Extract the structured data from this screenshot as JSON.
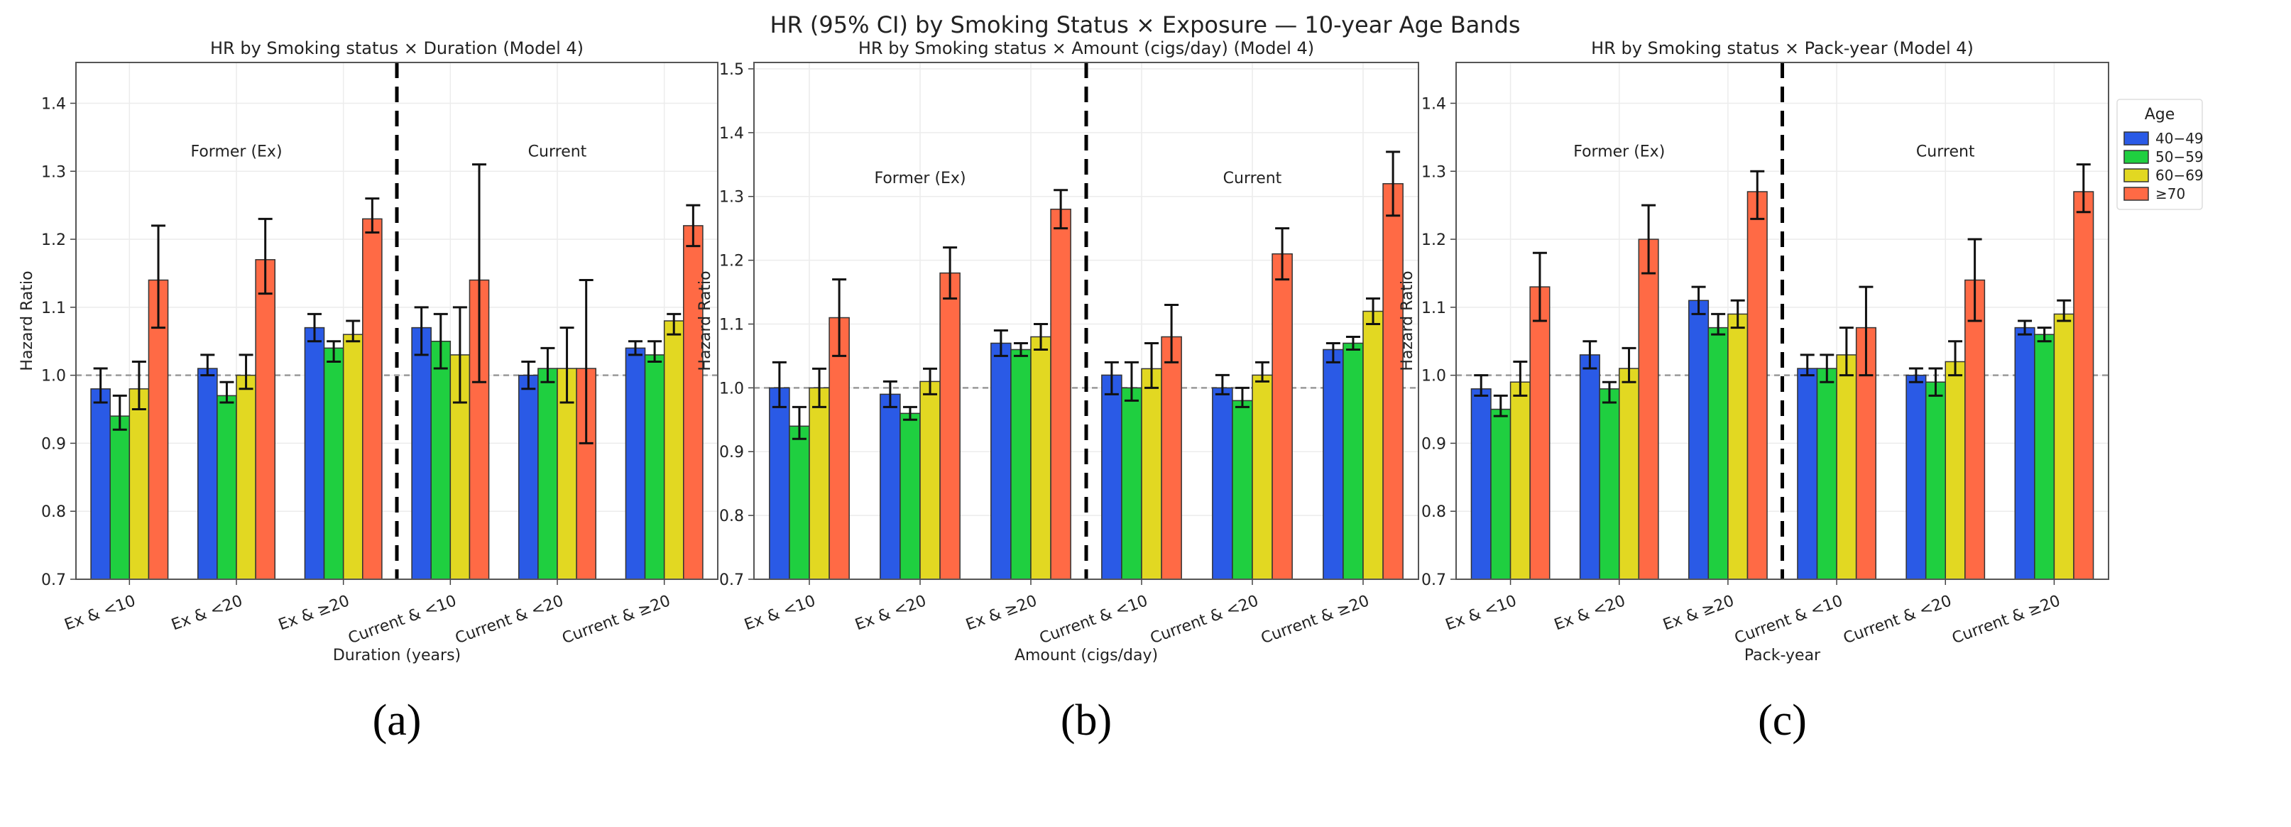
{
  "title": "HR (95% CI) by Smoking Status × Exposure — 10-year Age Bands",
  "colors": {
    "40-49": "#2a5ae6",
    "50-59": "#1fcf40",
    "60-69": "#e2d822",
    "70+": "#ff6a45"
  },
  "legend": {
    "title": "Age",
    "entries": [
      "40−49",
      "50−59",
      "60−69",
      "≥70"
    ]
  },
  "chart_data": [
    {
      "type": "bar",
      "panel_label": "(a)",
      "title": "HR by Smoking status × Duration (Model 4)",
      "xlabel": "Duration (years)",
      "ylabel": "Hazard Ratio",
      "ylim": [
        0.7,
        1.46
      ],
      "yticks": [
        "0.7",
        "0.8",
        "0.9",
        "1.0",
        "1.1",
        "1.2",
        "1.3",
        "1.4"
      ],
      "reference_line": 1.0,
      "group_labels": [
        "Former (Ex)",
        "Current"
      ],
      "categories": [
        "Ex & <10",
        "Ex & <20",
        "Ex & ≥20",
        "Current & <10",
        "Current & <20",
        "Current & ≥20"
      ],
      "series": [
        {
          "name": "40−49",
          "values": [
            0.98,
            1.01,
            1.07,
            1.07,
            1.0,
            1.04
          ],
          "ci_low": [
            0.96,
            1.0,
            1.05,
            1.03,
            0.98,
            1.03
          ],
          "ci_high": [
            1.01,
            1.03,
            1.09,
            1.1,
            1.02,
            1.05
          ]
        },
        {
          "name": "50−59",
          "values": [
            0.94,
            0.97,
            1.04,
            1.05,
            1.01,
            1.03
          ],
          "ci_low": [
            0.92,
            0.96,
            1.02,
            1.01,
            0.99,
            1.02
          ],
          "ci_high": [
            0.97,
            0.99,
            1.05,
            1.09,
            1.04,
            1.05
          ]
        },
        {
          "name": "60−69",
          "values": [
            0.98,
            1.0,
            1.06,
            1.03,
            1.01,
            1.08
          ],
          "ci_low": [
            0.95,
            0.98,
            1.05,
            0.96,
            0.96,
            1.06
          ],
          "ci_high": [
            1.02,
            1.03,
            1.08,
            1.1,
            1.07,
            1.09
          ]
        },
        {
          "name": "≥70",
          "values": [
            1.14,
            1.17,
            1.23,
            1.14,
            1.01,
            1.22
          ],
          "ci_low": [
            1.07,
            1.12,
            1.21,
            0.99,
            0.9,
            1.19
          ],
          "ci_high": [
            1.22,
            1.23,
            1.26,
            1.31,
            1.14,
            1.25
          ]
        }
      ]
    },
    {
      "type": "bar",
      "panel_label": "(b)",
      "title": "HR by Smoking status × Amount (cigs/day) (Model 4)",
      "xlabel": "Amount (cigs/day)",
      "ylabel": "Hazard Ratio",
      "ylim": [
        0.7,
        1.51
      ],
      "yticks": [
        "0.7",
        "0.8",
        "0.9",
        "1.0",
        "1.1",
        "1.2",
        "1.3",
        "1.4",
        "1.5"
      ],
      "reference_line": 1.0,
      "group_labels": [
        "Former (Ex)",
        "Current"
      ],
      "categories": [
        "Ex & <10",
        "Ex & <20",
        "Ex & ≥20",
        "Current & <10",
        "Current & <20",
        "Current & ≥20"
      ],
      "series": [
        {
          "name": "40−49",
          "values": [
            1.0,
            0.99,
            1.07,
            1.02,
            1.0,
            1.06
          ],
          "ci_low": [
            0.97,
            0.97,
            1.05,
            0.99,
            0.99,
            1.04
          ],
          "ci_high": [
            1.04,
            1.01,
            1.09,
            1.04,
            1.02,
            1.07
          ]
        },
        {
          "name": "50−59",
          "values": [
            0.94,
            0.96,
            1.06,
            1.0,
            0.98,
            1.07
          ],
          "ci_low": [
            0.92,
            0.95,
            1.05,
            0.98,
            0.97,
            1.06
          ],
          "ci_high": [
            0.97,
            0.97,
            1.07,
            1.04,
            1.0,
            1.08
          ]
        },
        {
          "name": "60−69",
          "values": [
            1.0,
            1.01,
            1.08,
            1.03,
            1.02,
            1.12
          ],
          "ci_low": [
            0.97,
            0.99,
            1.06,
            1.0,
            1.01,
            1.1
          ],
          "ci_high": [
            1.03,
            1.03,
            1.1,
            1.07,
            1.04,
            1.14
          ]
        },
        {
          "name": "≥70",
          "values": [
            1.11,
            1.18,
            1.28,
            1.08,
            1.21,
            1.32
          ],
          "ci_low": [
            1.05,
            1.14,
            1.25,
            1.04,
            1.17,
            1.27
          ],
          "ci_high": [
            1.17,
            1.22,
            1.31,
            1.13,
            1.25,
            1.37
          ]
        }
      ]
    },
    {
      "type": "bar",
      "panel_label": "(c)",
      "title": "HR by Smoking status × Pack-year (Model 4)",
      "xlabel": "Pack-year",
      "ylabel": "Hazard Ratio",
      "ylim": [
        0.7,
        1.46
      ],
      "yticks": [
        "0.7",
        "0.8",
        "0.9",
        "1.0",
        "1.1",
        "1.2",
        "1.3",
        "1.4"
      ],
      "reference_line": 1.0,
      "group_labels": [
        "Former (Ex)",
        "Current"
      ],
      "categories": [
        "Ex & <10",
        "Ex & <20",
        "Ex & ≥20",
        "Current & <10",
        "Current & <20",
        "Current & ≥20"
      ],
      "series": [
        {
          "name": "40−49",
          "values": [
            0.98,
            1.03,
            1.11,
            1.01,
            1.0,
            1.07
          ],
          "ci_low": [
            0.97,
            1.01,
            1.09,
            1.0,
            0.99,
            1.06
          ],
          "ci_high": [
            1.0,
            1.05,
            1.13,
            1.03,
            1.01,
            1.08
          ]
        },
        {
          "name": "50−59",
          "values": [
            0.95,
            0.98,
            1.07,
            1.01,
            0.99,
            1.06
          ],
          "ci_low": [
            0.94,
            0.96,
            1.06,
            0.99,
            0.97,
            1.05
          ],
          "ci_high": [
            0.97,
            0.99,
            1.09,
            1.03,
            1.01,
            1.07
          ]
        },
        {
          "name": "60−69",
          "values": [
            0.99,
            1.01,
            1.09,
            1.03,
            1.02,
            1.09
          ],
          "ci_low": [
            0.97,
            0.99,
            1.07,
            1.0,
            1.0,
            1.08
          ],
          "ci_high": [
            1.02,
            1.04,
            1.11,
            1.07,
            1.05,
            1.11
          ]
        },
        {
          "name": "≥70",
          "values": [
            1.13,
            1.2,
            1.27,
            1.07,
            1.14,
            1.27
          ],
          "ci_low": [
            1.08,
            1.15,
            1.23,
            1.0,
            1.08,
            1.24
          ],
          "ci_high": [
            1.18,
            1.25,
            1.3,
            1.13,
            1.2,
            1.31
          ]
        }
      ]
    }
  ]
}
